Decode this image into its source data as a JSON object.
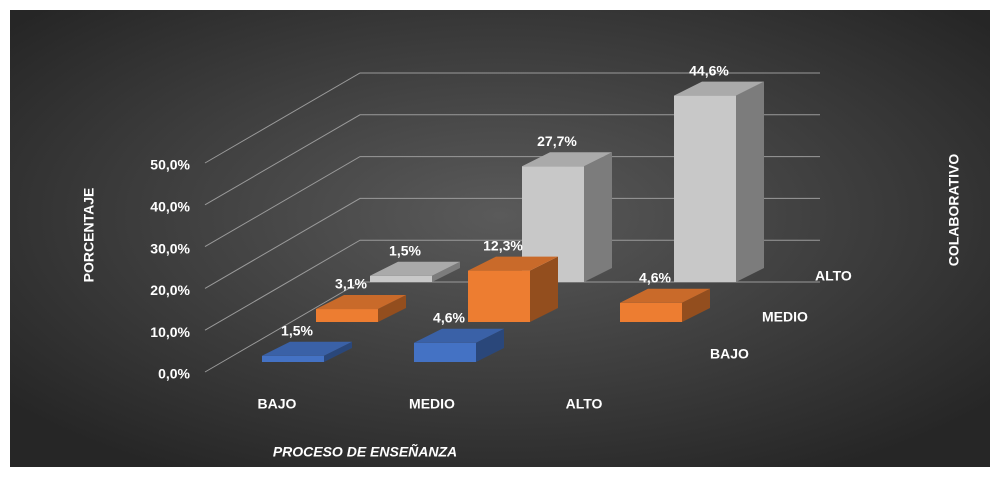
{
  "chart_data": {
    "type": "bar3d",
    "x_label": "PROCESO DE ENSEÑANZA",
    "y_label": "PORCENTAJE",
    "z_label": "COLABORATIVO",
    "categories": [
      "BAJO",
      "MEDIO",
      "ALTO"
    ],
    "series": [
      {
        "name": "BAJO",
        "color": "#4472c4",
        "values": [
          1.5,
          4.6,
          null
        ],
        "value_labels": [
          "1,5%",
          "4,6%",
          null
        ]
      },
      {
        "name": "MEDIO",
        "color": "#ed7d31",
        "values": [
          3.1,
          12.3,
          4.6
        ],
        "value_labels": [
          "3,1%",
          "12,3%",
          "4,6%"
        ]
      },
      {
        "name": "ALTO",
        "color": "#c8c8c8",
        "values": [
          1.5,
          27.7,
          44.6
        ],
        "value_labels": [
          "1,5%",
          "27,7%",
          "44,6%"
        ]
      }
    ],
    "ylim": [
      0,
      50
    ],
    "yticks": [
      {
        "value": 0,
        "label": "0,0%"
      },
      {
        "value": 10,
        "label": "10,0%"
      },
      {
        "value": 20,
        "label": "20,0%"
      },
      {
        "value": 30,
        "label": "30,0%"
      },
      {
        "value": 40,
        "label": "40,0%"
      },
      {
        "value": 50,
        "label": "50,0%"
      }
    ],
    "grid": true
  }
}
